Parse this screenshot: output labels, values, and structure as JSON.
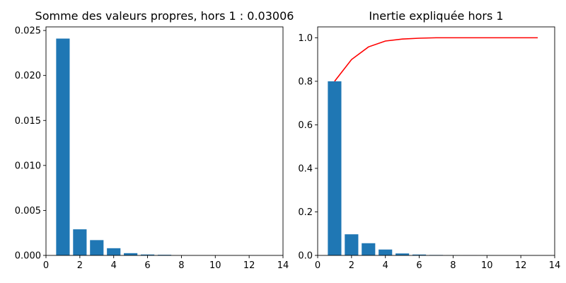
{
  "chart_data": [
    {
      "type": "bar",
      "title": "Somme des valeurs propres, hors 1 : 0.03006",
      "xlabel": "",
      "ylabel": "",
      "x": [
        1,
        2,
        3,
        4,
        5,
        6,
        7,
        8,
        9,
        10,
        11,
        12,
        13
      ],
      "values": [
        0.0241,
        0.0029,
        0.0017,
        0.0008,
        0.00025,
        0.0001,
        7e-05,
        0.0,
        0.0,
        0.0,
        0.0,
        0.0,
        0.0
      ],
      "xlim": [
        0,
        14
      ],
      "ylim": [
        0,
        0.0254
      ],
      "xticks": [
        0,
        2,
        4,
        6,
        8,
        10,
        12,
        14
      ],
      "yticks": [
        0.0,
        0.005,
        0.01,
        0.015,
        0.02,
        0.025
      ],
      "xtick_labels": [
        "0",
        "2",
        "4",
        "6",
        "8",
        "10",
        "12",
        "14"
      ],
      "ytick_labels": [
        "0.000",
        "0.005",
        "0.010",
        "0.015",
        "0.020",
        "0.025"
      ],
      "bar_color": "#1f77b4",
      "grid": false
    },
    {
      "type": "bar",
      "title": "Inertie expliquée hors 1",
      "xlabel": "",
      "ylabel": "",
      "x": [
        1,
        2,
        3,
        4,
        5,
        6,
        7,
        8,
        9,
        10,
        11,
        12,
        13
      ],
      "values": [
        0.8,
        0.097,
        0.056,
        0.027,
        0.009,
        0.004,
        0.002,
        0.001,
        0.0005,
        0.0003,
        0.0002,
        0.0001,
        0.0001
      ],
      "line": {
        "x": [
          1,
          2,
          3,
          4,
          5,
          6,
          7,
          8,
          9,
          10,
          11,
          12,
          13
        ],
        "y": [
          0.8,
          0.9,
          0.958,
          0.985,
          0.994,
          0.998,
          1.0,
          1.0,
          1.0,
          1.0,
          1.0,
          1.0,
          1.0
        ],
        "color": "#ff0000"
      },
      "xlim": [
        0,
        14
      ],
      "ylim": [
        0,
        1.05
      ],
      "xticks": [
        0,
        2,
        4,
        6,
        8,
        10,
        12,
        14
      ],
      "yticks": [
        0.0,
        0.2,
        0.4,
        0.6,
        0.8,
        1.0
      ],
      "xtick_labels": [
        "0",
        "2",
        "4",
        "6",
        "8",
        "10",
        "12",
        "14"
      ],
      "ytick_labels": [
        "0.0",
        "0.2",
        "0.4",
        "0.6",
        "0.8",
        "1.0"
      ],
      "bar_color": "#1f77b4",
      "grid": false
    }
  ]
}
